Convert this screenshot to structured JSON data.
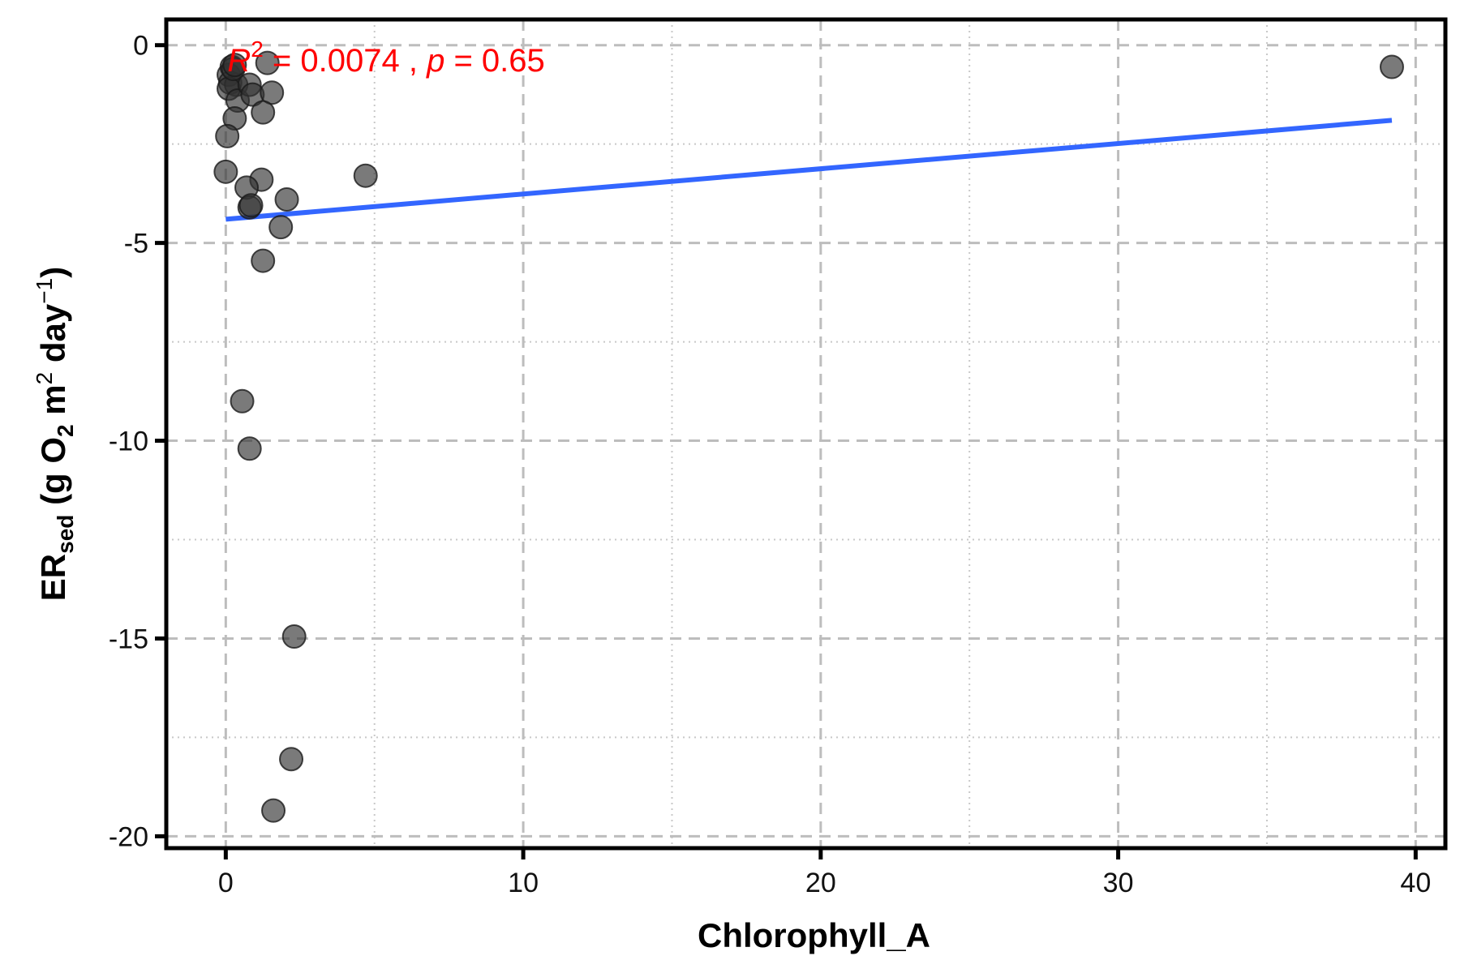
{
  "chart_data": {
    "type": "scatter",
    "xlabel": "Chlorophyll_A",
    "ylabel_parts": {
      "main": "ER",
      "sub": "sed",
      "paren_open": " (g O",
      "o2_sub": "2",
      "m_text": " m",
      "m_sup": "2",
      "day_text": " day",
      "day_sup": "−1",
      "paren_close": ")"
    },
    "xlim": [
      -2,
      41
    ],
    "ylim": [
      -20.3,
      0.65
    ],
    "x_ticks": [
      0,
      10,
      20,
      30,
      40
    ],
    "x_tick_labels": [
      "0",
      "10",
      "20",
      "30",
      "40"
    ],
    "y_ticks": [
      0,
      -5,
      -10,
      -15,
      -20
    ],
    "y_tick_labels": [
      "0",
      "-5",
      "-10",
      "-15",
      "-20"
    ],
    "x_minor": [
      5,
      15,
      25,
      35
    ],
    "y_minor": [
      -2.5,
      -7.5,
      -12.5,
      -17.5
    ],
    "grid": true,
    "points": {
      "color": "#333333",
      "opacity": 0.65,
      "x": [
        0.1,
        0.2,
        0.15,
        0.35,
        0.1,
        0.4,
        0.3,
        0.25,
        0.05,
        0.8,
        0.9,
        1.4,
        1.55,
        0.3,
        1.25,
        0.0,
        1.2,
        0.7,
        0.8,
        0.85,
        2.05,
        1.85,
        1.25,
        0.55,
        0.8,
        2.3,
        2.2,
        1.6,
        4.7,
        39.2
      ],
      "y": [
        -0.75,
        -0.55,
        -0.95,
        -1.0,
        -1.1,
        -1.4,
        -1.85,
        -0.6,
        -2.3,
        -1.0,
        -1.25,
        -0.45,
        -1.2,
        -0.5,
        -1.7,
        -3.2,
        -3.4,
        -3.6,
        -4.1,
        -4.05,
        -3.9,
        -4.6,
        -5.45,
        -9.0,
        -10.2,
        -14.95,
        -18.05,
        -19.35,
        -3.3,
        -0.55
      ]
    },
    "fit_line": {
      "color": "#3366ff",
      "x": [
        0.0,
        39.2
      ],
      "y": [
        -4.4,
        -1.9
      ]
    },
    "annotation": {
      "r2_label": "R",
      "r2_sup": "2",
      "r2_value": " = 0.0074 , ",
      "p_label": "p",
      "p_value": " = 0.65",
      "color": "#ff0000"
    }
  }
}
